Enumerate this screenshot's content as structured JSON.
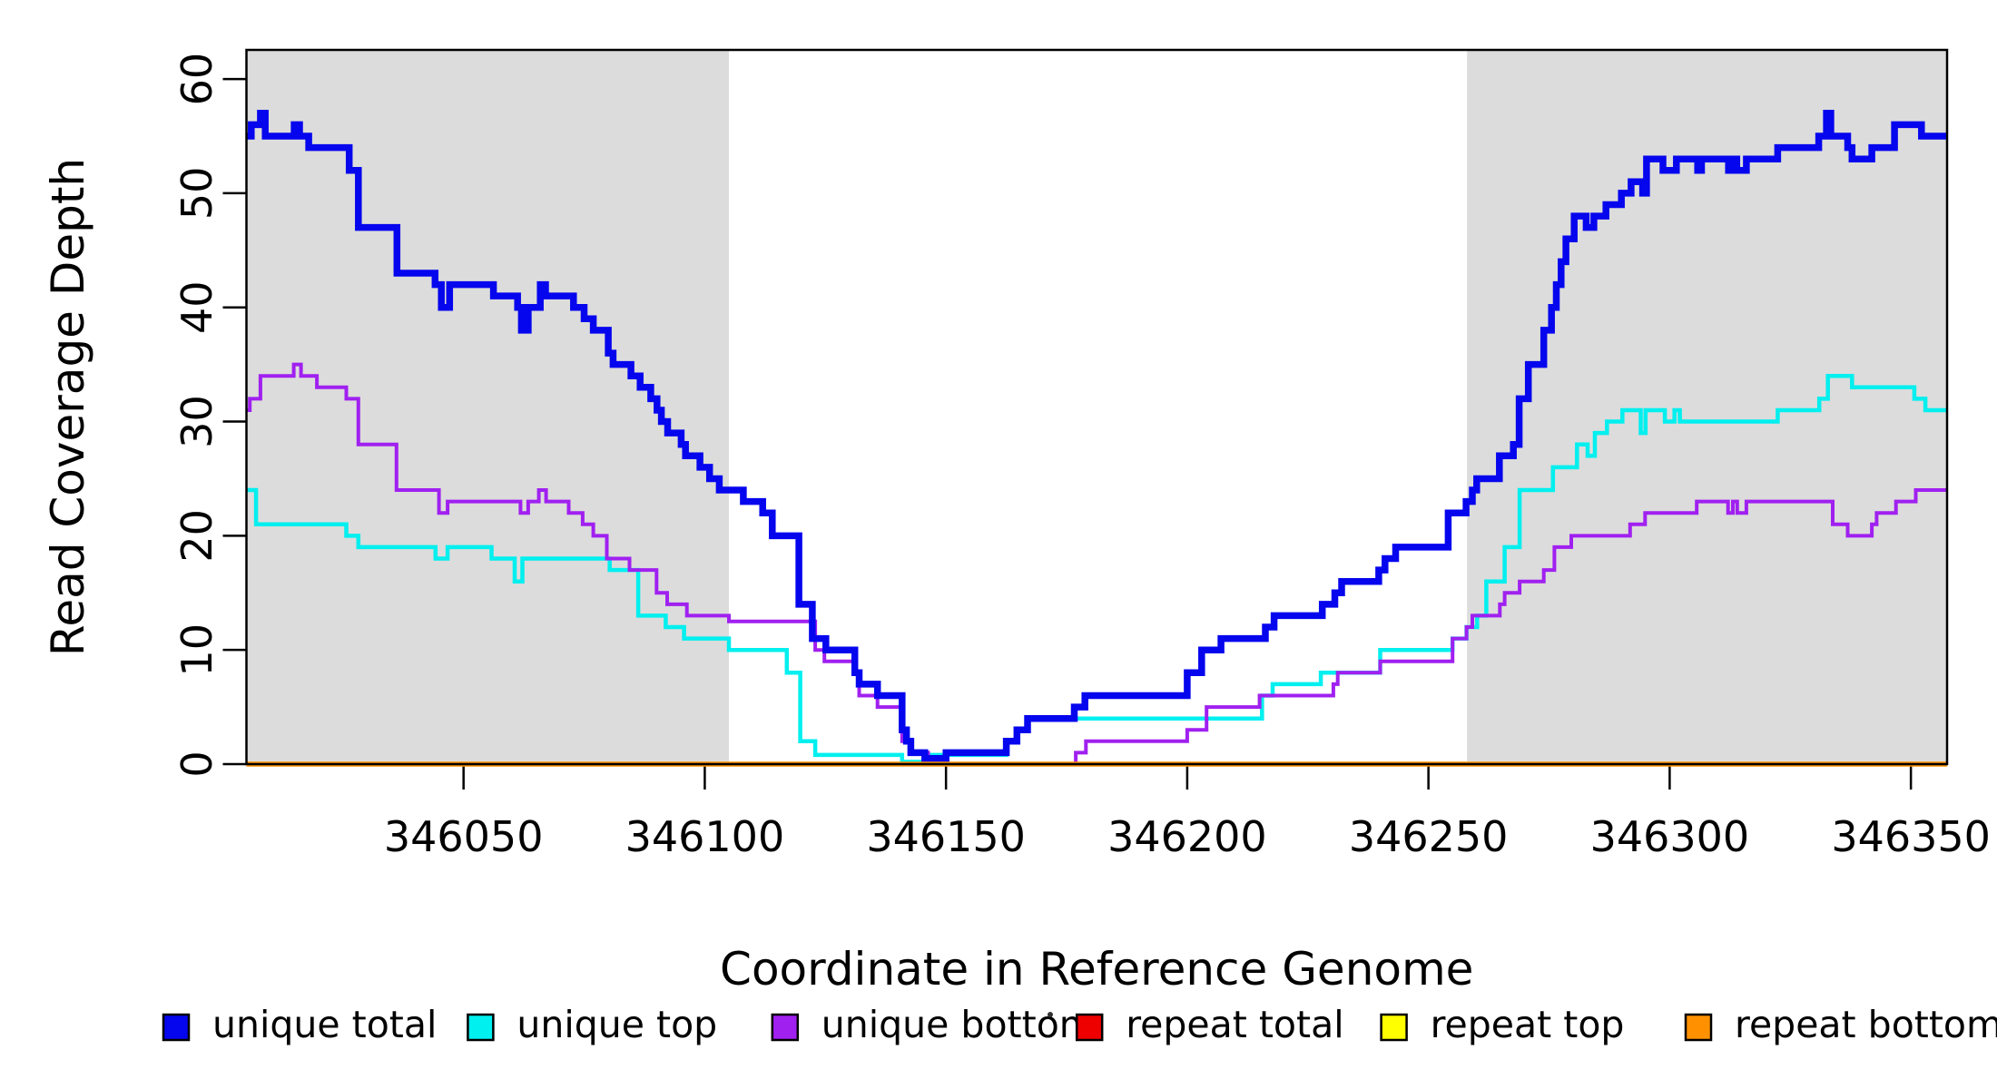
{
  "chart_data": {
    "type": "line",
    "subtype": "step-after-coverage-plot",
    "title": "",
    "xlabel": "Coordinate in Reference Genome",
    "ylabel": "Read Coverage Depth",
    "xlim": [
      346005,
      346357.5
    ],
    "ylim": [
      0,
      62.55
    ],
    "grid": false,
    "legend_position": "bottom",
    "x_ticks": [
      346050,
      346100,
      346150,
      346200,
      346250,
      346300,
      346350
    ],
    "x_tick_labels": [
      "346050",
      "346100",
      "346150",
      "346200",
      "346250",
      "346300",
      "346350"
    ],
    "y_ticks": [
      0,
      10,
      20,
      30,
      40,
      50,
      60
    ],
    "y_tick_labels": [
      "0",
      "10",
      "20",
      "30",
      "40",
      "50",
      "60"
    ],
    "shaded_regions": [
      {
        "x0": 346005,
        "x1": 346105,
        "color": "#DCDCDC"
      },
      {
        "x0": 346258,
        "x1": 346357.5,
        "color": "#DCDCDC"
      }
    ],
    "legend": [
      {
        "label": "unique total",
        "color": "#0505EE"
      },
      {
        "label": "unique top",
        "color": "#00EFEF"
      },
      {
        "label": "unique bottom",
        "color": "#A020F0"
      },
      {
        "label": "repeat total",
        "color": "#EE0000"
      },
      {
        "label": "repeat top",
        "color": "#FFFF00"
      },
      {
        "label": "repeat bottom",
        "color": "#FF9100"
      }
    ],
    "draw_order": [
      "repeat total",
      "repeat top",
      "unique top",
      "unique bottom",
      "unique total",
      "repeat bottom"
    ],
    "series": [
      {
        "name": "unique total",
        "color": "#0505EE",
        "width": 7.5,
        "steps": [
          [
            346005,
            55
          ],
          [
            346006,
            56
          ],
          [
            346007.9,
            57
          ],
          [
            346008.9,
            55
          ],
          [
            346014.9,
            56
          ],
          [
            346016,
            55
          ],
          [
            346017.9,
            54
          ],
          [
            346026.3,
            52
          ],
          [
            346028.2,
            47
          ],
          [
            346036.2,
            43
          ],
          [
            346044.1,
            42
          ],
          [
            346045.4,
            40
          ],
          [
            346047.1,
            42
          ],
          [
            346056.2,
            41
          ],
          [
            346061.2,
            40
          ],
          [
            346062,
            38
          ],
          [
            346063.4,
            40
          ],
          [
            346065.9,
            42
          ],
          [
            346067,
            41
          ],
          [
            346072.8,
            40
          ],
          [
            346075,
            39
          ],
          [
            346076.9,
            38
          ],
          [
            346080,
            36
          ],
          [
            346081,
            35
          ],
          [
            346084.7,
            34
          ],
          [
            346086.6,
            33
          ],
          [
            346088.8,
            32
          ],
          [
            346090.1,
            31
          ],
          [
            346091,
            30
          ],
          [
            346092.3,
            29
          ],
          [
            346095.1,
            28
          ],
          [
            346096,
            27
          ],
          [
            346099,
            26
          ],
          [
            346101,
            25
          ],
          [
            346103,
            24
          ],
          [
            346108,
            23
          ],
          [
            346112,
            22
          ],
          [
            346114,
            20
          ],
          [
            346119.5,
            14
          ],
          [
            346122.3,
            11
          ],
          [
            346125.1,
            10
          ],
          [
            346131.1,
            8
          ],
          [
            346132,
            7
          ],
          [
            346135.8,
            6
          ],
          [
            346140.9,
            3
          ],
          [
            346141.8,
            2
          ],
          [
            346142.7,
            1
          ],
          [
            346145.6,
            0.5
          ],
          [
            346150,
            1
          ],
          [
            346162.5,
            2
          ],
          [
            346164.7,
            3
          ],
          [
            346166.9,
            4
          ],
          [
            346176.6,
            5
          ],
          [
            346178.8,
            6
          ],
          [
            346200,
            8
          ],
          [
            346203,
            10
          ],
          [
            346207,
            11
          ],
          [
            346216.2,
            12
          ],
          [
            346218,
            13
          ],
          [
            346228,
            14
          ],
          [
            346230.6,
            15
          ],
          [
            346232,
            16
          ],
          [
            346239.7,
            17
          ],
          [
            346241,
            18
          ],
          [
            346243.2,
            19
          ],
          [
            346254.1,
            22
          ],
          [
            346257.8,
            23
          ],
          [
            346259.1,
            24
          ],
          [
            346260,
            25
          ],
          [
            346264.7,
            27
          ],
          [
            346267.6,
            28
          ],
          [
            346268.8,
            32
          ],
          [
            346270.7,
            35
          ],
          [
            346273.9,
            38
          ],
          [
            346275.5,
            40
          ],
          [
            346276.5,
            42
          ],
          [
            346277.5,
            44
          ],
          [
            346278.5,
            46
          ],
          [
            346280.2,
            48
          ],
          [
            346282.7,
            47
          ],
          [
            346284.3,
            48
          ],
          [
            346286.8,
            49
          ],
          [
            346290,
            50
          ],
          [
            346292,
            51
          ],
          [
            346294.4,
            50
          ],
          [
            346295.2,
            53
          ],
          [
            346298.6,
            52
          ],
          [
            346301.4,
            53
          ],
          [
            346305.8,
            52
          ],
          [
            346306.6,
            53
          ],
          [
            346312.2,
            52
          ],
          [
            346313.1,
            53
          ],
          [
            346313.9,
            52
          ],
          [
            346315.9,
            53
          ],
          [
            346322.4,
            54
          ],
          [
            346330.9,
            55
          ],
          [
            346332.5,
            57
          ],
          [
            346333.4,
            55
          ],
          [
            346336.9,
            54
          ],
          [
            346337.8,
            53
          ],
          [
            346341.9,
            54
          ],
          [
            346346.6,
            56
          ],
          [
            346352.2,
            55
          ]
        ]
      },
      {
        "name": "unique top",
        "color": "#00EFEF",
        "width": 4.5,
        "steps": [
          [
            346005,
            24
          ],
          [
            346007,
            21
          ],
          [
            346025.7,
            20
          ],
          [
            346028.2,
            19
          ],
          [
            346044.2,
            18
          ],
          [
            346046.7,
            19
          ],
          [
            346055.8,
            18
          ],
          [
            346060.6,
            16
          ],
          [
            346062.2,
            18
          ],
          [
            346080.3,
            17
          ],
          [
            346086.2,
            13
          ],
          [
            346091.9,
            12
          ],
          [
            346095.7,
            11
          ],
          [
            346105,
            10
          ],
          [
            346117,
            8
          ],
          [
            346119.8,
            2
          ],
          [
            346122.9,
            0.8
          ],
          [
            346140.9,
            0.2
          ],
          [
            346146.3,
            0.8
          ],
          [
            346162.5,
            2
          ],
          [
            346164.7,
            3
          ],
          [
            346166.9,
            4
          ],
          [
            346215.5,
            6
          ],
          [
            346217.7,
            7
          ],
          [
            346227.7,
            8
          ],
          [
            346240,
            10
          ],
          [
            346255,
            11
          ],
          [
            346257.9,
            12
          ],
          [
            346260.1,
            13
          ],
          [
            346262,
            16
          ],
          [
            346265.8,
            19
          ],
          [
            346268.9,
            24
          ],
          [
            346275.8,
            26
          ],
          [
            346280.8,
            28
          ],
          [
            346283,
            27
          ],
          [
            346284.5,
            29
          ],
          [
            346287,
            30
          ],
          [
            346290.2,
            31
          ],
          [
            346294,
            29
          ],
          [
            346295,
            31
          ],
          [
            346299,
            30
          ],
          [
            346301,
            31
          ],
          [
            346302.1,
            30
          ],
          [
            346322.4,
            31
          ],
          [
            346331,
            32
          ],
          [
            346332.8,
            34
          ],
          [
            346337.8,
            33
          ],
          [
            346350.7,
            32
          ],
          [
            346353,
            31
          ]
        ]
      },
      {
        "name": "unique bottom",
        "color": "#A020F0",
        "width": 4,
        "steps": [
          [
            346005,
            31
          ],
          [
            346005.7,
            32
          ],
          [
            346007.9,
            34
          ],
          [
            346014.8,
            35
          ],
          [
            346016.3,
            34
          ],
          [
            346019.6,
            33
          ],
          [
            346025.7,
            32
          ],
          [
            346028.2,
            28
          ],
          [
            346036.1,
            24
          ],
          [
            346044.9,
            22
          ],
          [
            346046.7,
            23
          ],
          [
            346061.8,
            22
          ],
          [
            346063.4,
            23
          ],
          [
            346065.6,
            24
          ],
          [
            346067.1,
            23
          ],
          [
            346071.8,
            22
          ],
          [
            346074.7,
            21
          ],
          [
            346076.9,
            20
          ],
          [
            346079.7,
            18
          ],
          [
            346084.4,
            17
          ],
          [
            346090,
            15
          ],
          [
            346092.2,
            14
          ],
          [
            346096.3,
            13
          ],
          [
            346105,
            12.5
          ],
          [
            346122.9,
            10
          ],
          [
            346124.8,
            9
          ],
          [
            346131.1,
            8
          ],
          [
            346132,
            6
          ],
          [
            346135.8,
            5
          ],
          [
            346140.9,
            2
          ],
          [
            346142.7,
            1
          ],
          [
            346146.3,
            0
          ],
          [
            346176.9,
            1
          ],
          [
            346179,
            2
          ],
          [
            346200,
            3
          ],
          [
            346204,
            5
          ],
          [
            346215,
            6
          ],
          [
            346230.3,
            7
          ],
          [
            346231.2,
            8
          ],
          [
            346240,
            9
          ],
          [
            346255,
            11
          ],
          [
            346257.9,
            12
          ],
          [
            346259.1,
            13
          ],
          [
            346264.8,
            14
          ],
          [
            346265.8,
            15
          ],
          [
            346268.9,
            16
          ],
          [
            346273.9,
            17
          ],
          [
            346276.1,
            19
          ],
          [
            346279.6,
            20
          ],
          [
            346291.8,
            21
          ],
          [
            346294.9,
            22
          ],
          [
            346305.6,
            23
          ],
          [
            346312.1,
            22
          ],
          [
            346313.1,
            23
          ],
          [
            346314,
            22
          ],
          [
            346315.9,
            23
          ],
          [
            346333.8,
            21
          ],
          [
            346336.9,
            20
          ],
          [
            346341.9,
            21
          ],
          [
            346342.9,
            22
          ],
          [
            346346.9,
            23
          ],
          [
            346351,
            24
          ]
        ]
      },
      {
        "name": "repeat total",
        "color": "#EE0000",
        "width": 4,
        "steps": [
          [
            346005,
            0
          ]
        ]
      },
      {
        "name": "repeat top",
        "color": "#FFFF00",
        "width": 4,
        "steps": [
          [
            346005,
            0
          ]
        ]
      },
      {
        "name": "repeat bottom",
        "color": "#FF9100",
        "width": 5.5,
        "steps": [
          [
            346005,
            0
          ]
        ]
      }
    ],
    "artifacts": [
      {
        "type": "dot",
        "x": 1157,
        "y": 1118
      }
    ]
  }
}
